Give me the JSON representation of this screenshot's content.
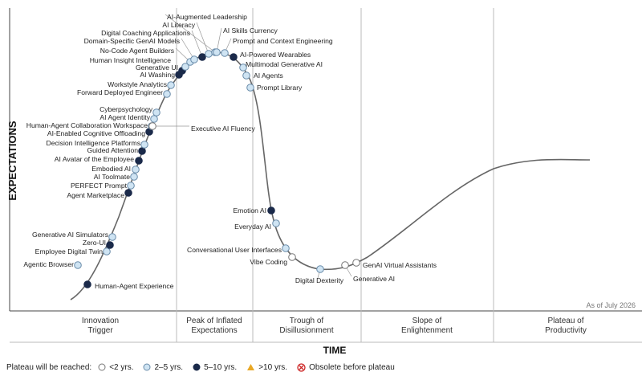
{
  "chart_data": {
    "type": "scatter",
    "title": "",
    "xlabel": "TIME",
    "ylabel": "EXPECTATIONS",
    "as_of": "As of July 2026",
    "phases": [
      {
        "line1": "Innovation",
        "line2": "Trigger"
      },
      {
        "line1": "Peak of Inflated",
        "line2": "Expectations"
      },
      {
        "line1": "Trough of",
        "line2": "Disillusionment"
      },
      {
        "line1": "Slope of",
        "line2": "Enlightenment"
      },
      {
        "line1": "Plateau of",
        "line2": "Productivity"
      }
    ],
    "legend": {
      "title": "Plateau will be reached:",
      "items": [
        {
          "key": "lt2",
          "label": "<2 yrs."
        },
        {
          "key": "2to5",
          "label": "2–5 yrs."
        },
        {
          "key": "5to10",
          "label": "5–10 yrs."
        },
        {
          "key": "gt10",
          "label": ">10 yrs."
        },
        {
          "key": "obsolete",
          "label": "Obsolete before plateau"
        }
      ]
    },
    "colors": {
      "lt2": "#ffffff",
      "2to5": "#cfe4f3",
      "5to10": "#1b2a4a",
      "gt10": "#e9a826",
      "obsolete": "#cc2222",
      "curve": "#666666"
    },
    "technologies": [
      {
        "name": "Human-Agent Experience",
        "category": "5to10"
      },
      {
        "name": "Agentic Browser",
        "category": "2to5"
      },
      {
        "name": "Employee Digital Twin",
        "category": "2to5"
      },
      {
        "name": "Zero-UI",
        "category": "5to10"
      },
      {
        "name": "Generative AI Simulators",
        "category": "2to5"
      },
      {
        "name": "Agent Marketplace",
        "category": "5to10"
      },
      {
        "name": "PERFECT Prompt",
        "category": "2to5"
      },
      {
        "name": "AI Toolmate",
        "category": "2to5"
      },
      {
        "name": "Embodied AI",
        "category": "2to5"
      },
      {
        "name": "AI Avatar of the Employee",
        "category": "5to10"
      },
      {
        "name": "Guided Attention",
        "category": "5to10"
      },
      {
        "name": "Decision Intelligence Platforms",
        "category": "2to5"
      },
      {
        "name": "AI-Enabled Cognitive Offloading",
        "category": "5to10"
      },
      {
        "name": "Human-Agent Collaboration Workspace",
        "category": "2to5"
      },
      {
        "name": "AI Agent Identity",
        "category": "2to5"
      },
      {
        "name": "Cyberpsychology",
        "category": "2to5"
      },
      {
        "name": "Executive AI Fluency",
        "category": "lt2"
      },
      {
        "name": "Forward Deployed Engineer",
        "category": "2to5"
      },
      {
        "name": "Workstyle Analytics",
        "category": "2to5"
      },
      {
        "name": "AI Washing",
        "category": "5to10"
      },
      {
        "name": "Generative UI",
        "category": "5to10"
      },
      {
        "name": "Human Insight Intelligence",
        "category": "2to5"
      },
      {
        "name": "No-Code Agent Builders",
        "category": "2to5"
      },
      {
        "name": "Domain-Specific GenAI Models",
        "category": "2to5"
      },
      {
        "name": "Digital Coaching Applications",
        "category": "5to10"
      },
      {
        "name": "AI Literacy",
        "category": "2to5"
      },
      {
        "name": "AI-Augmented Leadership",
        "category": "2to5"
      },
      {
        "name": "AI Skills Currency",
        "category": "2to5"
      },
      {
        "name": "Prompt and Context Engineering",
        "category": "2to5"
      },
      {
        "name": "AI-Powered Wearables",
        "category": "5to10"
      },
      {
        "name": "Multimodal Generative AI",
        "category": "2to5"
      },
      {
        "name": "AI Agents",
        "category": "2to5"
      },
      {
        "name": "Prompt Library",
        "category": "2to5"
      },
      {
        "name": "Emotion AI",
        "category": "5to10"
      },
      {
        "name": "Everyday AI",
        "category": "2to5"
      },
      {
        "name": "Conversational User Interfaces",
        "category": "2to5"
      },
      {
        "name": "Vibe Coding",
        "category": "lt2"
      },
      {
        "name": "Digital Dexterity",
        "category": "2to5"
      },
      {
        "name": "Generative AI",
        "category": "lt2"
      },
      {
        "name": "GenAI Virtual Assistants",
        "category": "lt2"
      }
    ]
  }
}
